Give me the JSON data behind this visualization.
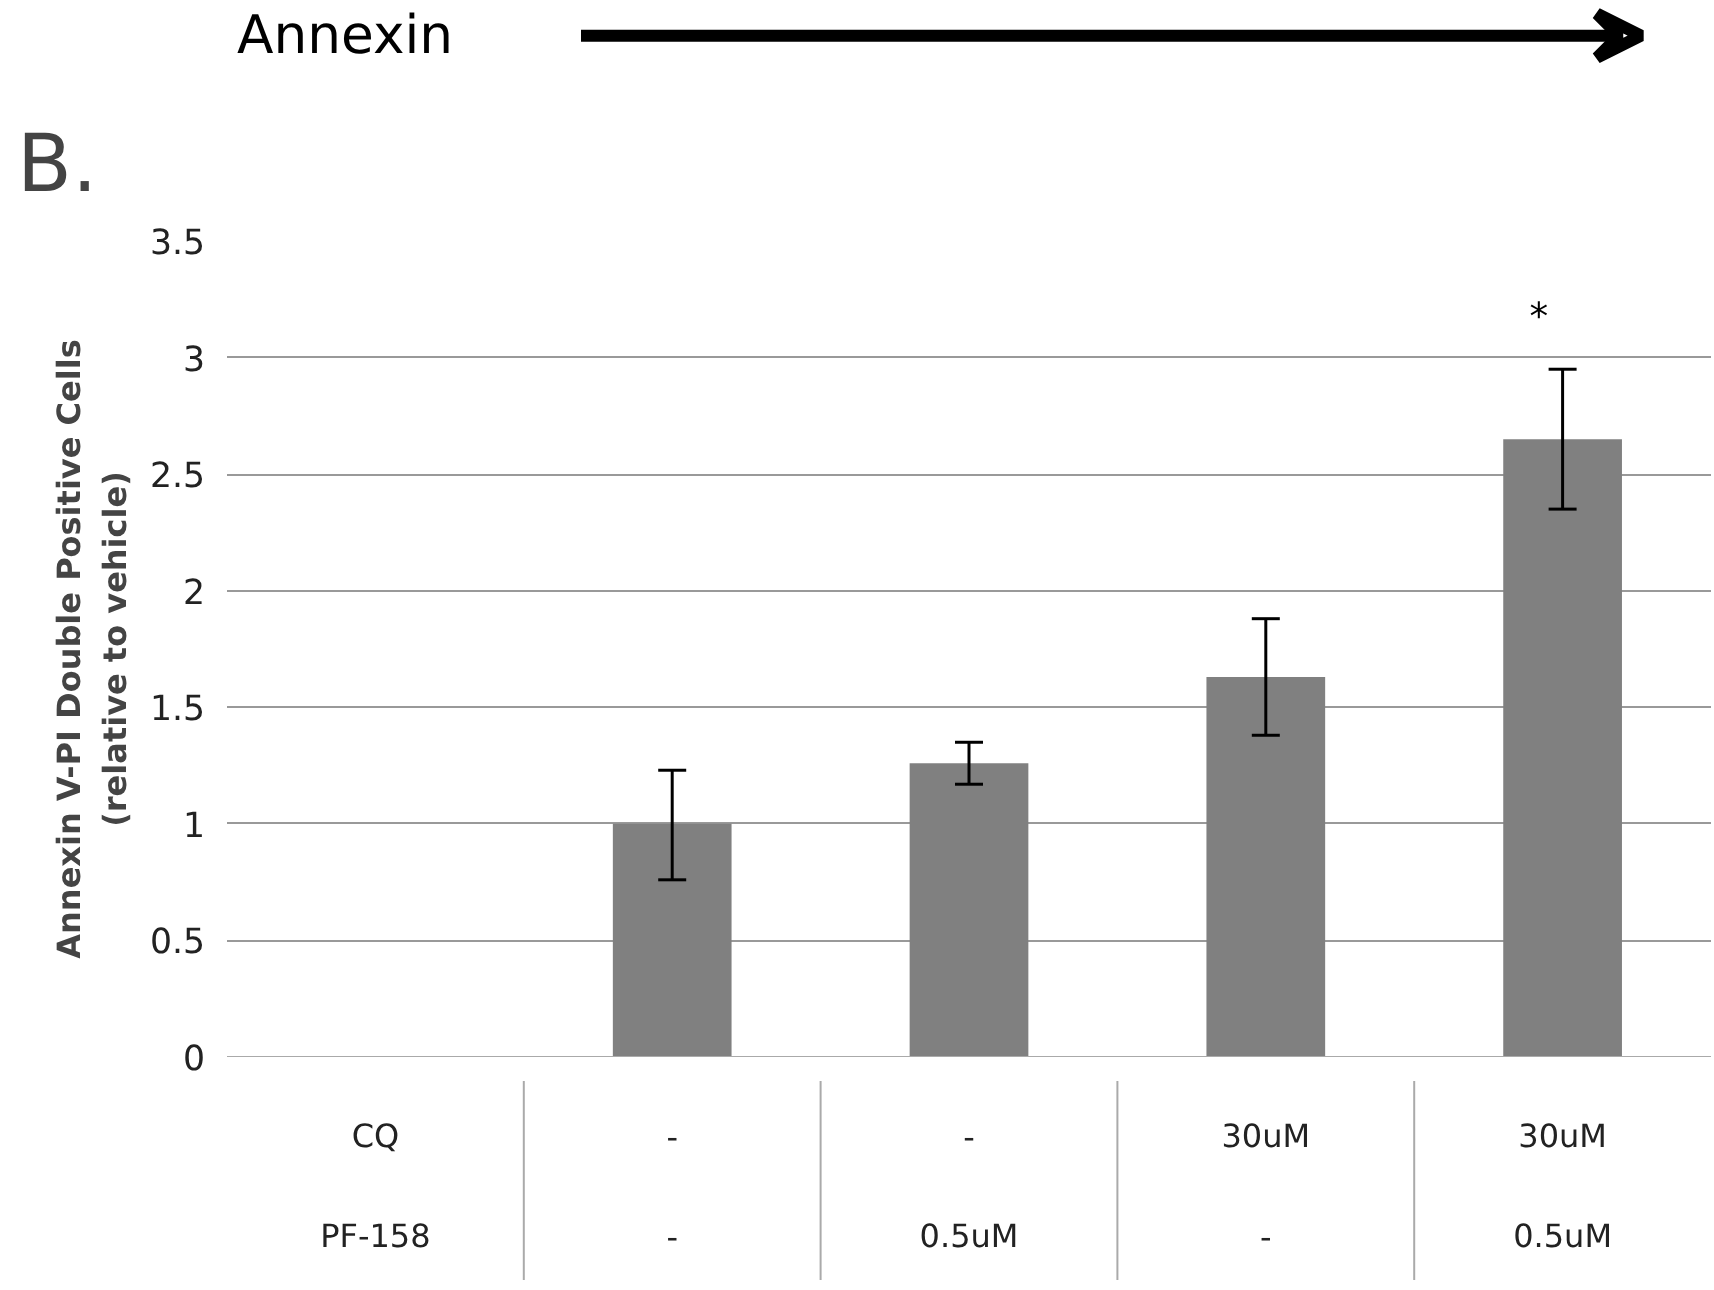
{
  "chart_data": {
    "type": "bar",
    "ylabel": "Annexin V-PI Double Positive Cells\n(relative to vehicle)",
    "categories": [
      "CQ\nPF-158",
      "-\n-",
      "-\n0.5uM",
      "30uM\n-",
      "30uM\n0.5uM"
    ],
    "values": [
      null,
      1.0,
      1.26,
      1.63,
      2.65
    ],
    "errors": [
      null,
      [
        0.76,
        1.23
      ],
      [
        1.17,
        1.35
      ],
      [
        1.38,
        1.88
      ],
      [
        2.35,
        2.95
      ]
    ],
    "color": "#808080",
    "ylim": [
      0,
      3.5
    ],
    "yticks": [
      0,
      0.5,
      1,
      1.5,
      2,
      2.5,
      3,
      3.5
    ],
    "grid": "y",
    "annotations": [
      "B.",
      "Annexin",
      "*"
    ]
  }
}
